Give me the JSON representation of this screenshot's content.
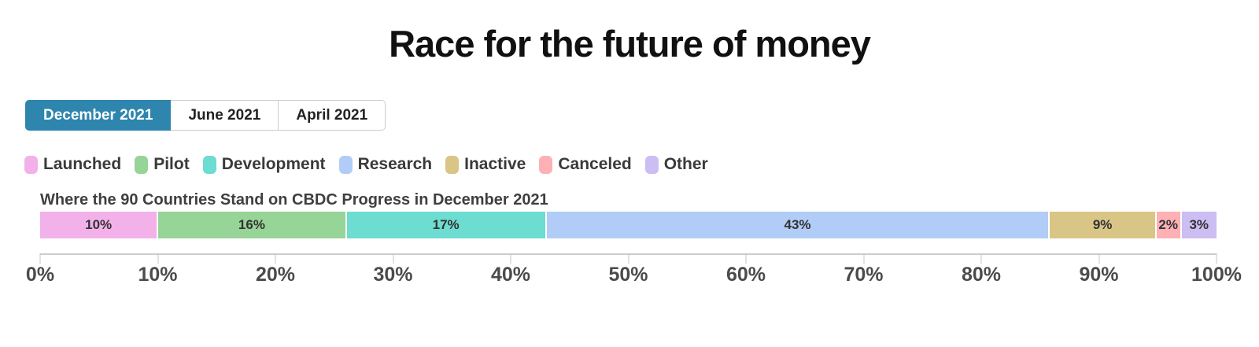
{
  "title": "Race for the future of money",
  "tabs": [
    {
      "label": "December 2021",
      "active": true
    },
    {
      "label": "June 2021",
      "active": false
    },
    {
      "label": "April 2021",
      "active": false
    }
  ],
  "colors": {
    "active_tab": "#2e85ad",
    "tab_border": "#cccccc",
    "axis": "#cccccc"
  },
  "chart_data": {
    "type": "bar",
    "subtype": "horizontal-stacked-percentage",
    "title": "Where the 90 Countries Stand on CBDC Progress in December 2021",
    "categories": [
      "Launched",
      "Pilot",
      "Development",
      "Research",
      "Inactive",
      "Canceled",
      "Other"
    ],
    "values": [
      10,
      16,
      17,
      43,
      9,
      2,
      3
    ],
    "value_labels": [
      "10%",
      "16%",
      "17%",
      "43%",
      "9%",
      "2%",
      "3%"
    ],
    "colors": [
      "#f3b1ea",
      "#97d497",
      "#6ddcd1",
      "#b1cdf7",
      "#d9c585",
      "#feb0b5",
      "#ccbdf2"
    ],
    "xlim": [
      0,
      100
    ],
    "x_ticks": [
      "0%",
      "10%",
      "20%",
      "30%",
      "40%",
      "50%",
      "60%",
      "70%",
      "80%",
      "90%",
      "100%"
    ],
    "legend_position": "top",
    "grid": false
  }
}
